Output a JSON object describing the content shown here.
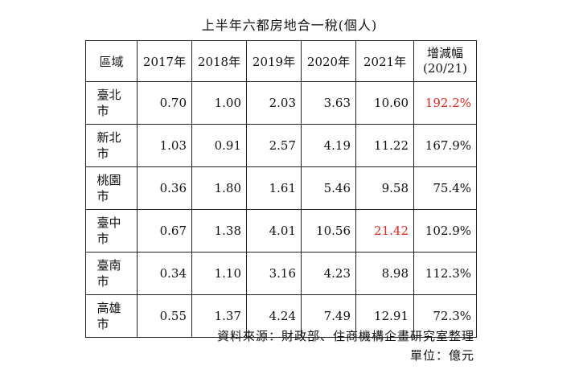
{
  "title": "上半年六都房地合一稅(個人)",
  "table": {
    "headers": [
      "區域",
      "2017年",
      "2018年",
      "2019年",
      "2020年",
      "2021年"
    ],
    "change_header_line1": "增減幅",
    "change_header_line2": "(20/21)",
    "rows": [
      {
        "region": "臺北市",
        "values": [
          "0.70",
          "1.00",
          "2.03",
          "3.63",
          "10.60"
        ],
        "change": "192.2%"
      },
      {
        "region": "新北市",
        "values": [
          "1.03",
          "0.91",
          "2.57",
          "4.19",
          "11.22"
        ],
        "change": "167.9%"
      },
      {
        "region": "桃園市",
        "values": [
          "0.36",
          "1.80",
          "1.61",
          "5.46",
          "9.58"
        ],
        "change": "75.4%"
      },
      {
        "region": "臺中市",
        "values": [
          "0.67",
          "1.38",
          "4.01",
          "10.56",
          "21.42"
        ],
        "change": "102.9%"
      },
      {
        "region": "臺南市",
        "values": [
          "0.34",
          "1.10",
          "3.16",
          "4.23",
          "8.98"
        ],
        "change": "112.3%"
      },
      {
        "region": "高雄市",
        "values": [
          "0.55",
          "1.37",
          "4.24",
          "7.49",
          "12.91"
        ],
        "change": "72.3%"
      }
    ],
    "highlight_color": "#e8261c"
  },
  "footer": {
    "source": "資料來源：財政部、住商機構企畫研究室整理",
    "unit": "單位：億元"
  }
}
